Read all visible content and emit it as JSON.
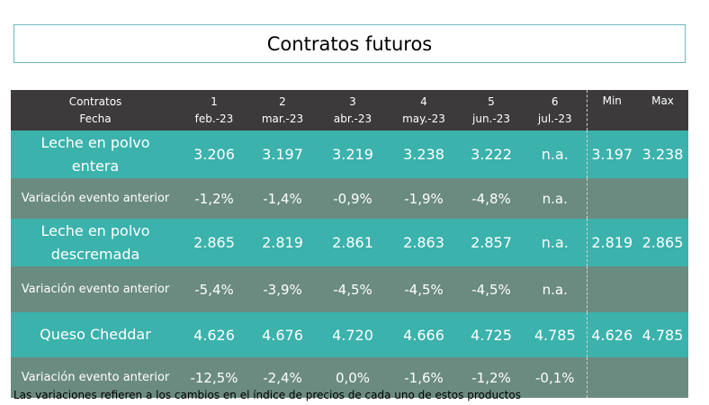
{
  "title": "Contratos futuros",
  "header": {
    "row1": [
      "Contratos",
      "1",
      "2",
      "3",
      "4",
      "5",
      "6",
      "Min",
      "Max"
    ],
    "row2": [
      "Fecha",
      "feb.-23",
      "mar.-23",
      "abr.-23",
      "may.-23",
      "jun.-23",
      "jul.-23",
      "",
      ""
    ]
  },
  "rows": [
    {
      "label": "Leche en polvo entera",
      "values": [
        "3.206",
        "3.197",
        "3.219",
        "3.238",
        "3.222",
        "n.a.",
        "3.197",
        "3.238"
      ]
    },
    {
      "label": "Variación evento anterior",
      "values": [
        "-1,2%",
        "-1,4%",
        "-0,9%",
        "-1,9%",
        "-4,8%",
        "n.a.",
        "",
        ""
      ]
    },
    {
      "label": "Leche en polvo descremada",
      "values": [
        "2.865",
        "2.819",
        "2.861",
        "2.863",
        "2.857",
        "n.a.",
        "2.819",
        "2.865"
      ]
    },
    {
      "label": "Variación evento anterior",
      "values": [
        "-5,4%",
        "-3,9%",
        "-4,5%",
        "-4,5%",
        "-4,5%",
        "n.a.",
        "",
        ""
      ]
    },
    {
      "label": "Queso Cheddar",
      "values": [
        "4.626",
        "4.676",
        "4.720",
        "4.666",
        "4.725",
        "4.785",
        "4.626",
        "4.785"
      ]
    },
    {
      "label": "Variación evento anterior",
      "values": [
        "-12,5%",
        "-2,4%",
        "0,0%",
        "-1,6%",
        "-1,2%",
        "-0,1%",
        "",
        ""
      ]
    }
  ],
  "footnote": "Las variaciones refieren a los cambios en el índice de precios de cada uno de estos productos",
  "colors": {
    "header_bg": "#3c3a3b",
    "product_row": "#3bb2ac",
    "variation_row": "#6b8b80",
    "title_border": "#6fb7c0"
  }
}
